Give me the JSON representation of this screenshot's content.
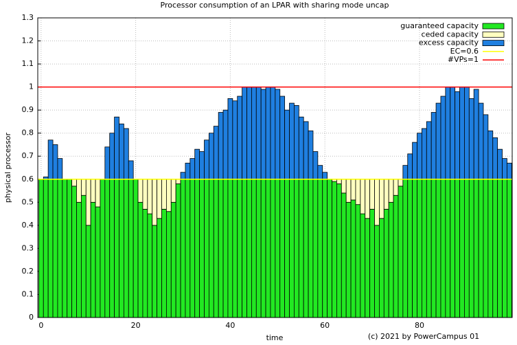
{
  "chart_data": {
    "type": "stacked-bar",
    "title": "Processor consumption of an LPAR with sharing mode uncap",
    "xlabel": "time",
    "ylabel": "physical processor",
    "footer": "(c) 2021 by PowerCampus 01",
    "x": [
      0,
      1,
      2,
      3,
      4,
      5,
      6,
      7,
      8,
      9,
      10,
      11,
      12,
      13,
      14,
      15,
      16,
      17,
      18,
      19,
      20,
      21,
      22,
      23,
      24,
      25,
      26,
      27,
      28,
      29,
      30,
      31,
      32,
      33,
      34,
      35,
      36,
      37,
      38,
      39,
      40,
      41,
      42,
      43,
      44,
      45,
      46,
      47,
      48,
      49,
      50,
      51,
      52,
      53,
      54,
      55,
      56,
      57,
      58,
      59,
      60,
      61,
      62,
      63,
      64,
      65,
      66,
      67,
      68,
      69,
      70,
      71,
      72,
      73,
      74,
      75,
      76,
      77,
      78,
      79,
      80,
      81,
      82,
      83,
      84,
      85,
      86,
      87,
      88,
      89,
      90,
      91,
      92,
      93,
      94,
      95,
      96,
      97,
      98,
      99
    ],
    "series": [
      {
        "name": "guaranteed capacity",
        "color": "#22e822",
        "values": [
          0.6,
          0.6,
          0.6,
          0.6,
          0.6,
          0.6,
          0.6,
          0.57,
          0.5,
          0.53,
          0.4,
          0.5,
          0.48,
          0.6,
          0.6,
          0.6,
          0.6,
          0.6,
          0.6,
          0.6,
          0.6,
          0.5,
          0.47,
          0.45,
          0.4,
          0.43,
          0.47,
          0.46,
          0.5,
          0.58,
          0.6,
          0.6,
          0.6,
          0.6,
          0.6,
          0.6,
          0.6,
          0.6,
          0.6,
          0.6,
          0.6,
          0.6,
          0.6,
          0.6,
          0.6,
          0.6,
          0.6,
          0.6,
          0.6,
          0.6,
          0.6,
          0.6,
          0.6,
          0.6,
          0.6,
          0.6,
          0.6,
          0.6,
          0.6,
          0.6,
          0.6,
          0.6,
          0.59,
          0.58,
          0.54,
          0.5,
          0.51,
          0.49,
          0.45,
          0.43,
          0.47,
          0.4,
          0.43,
          0.47,
          0.5,
          0.53,
          0.57,
          0.6,
          0.6,
          0.6,
          0.6,
          0.6,
          0.6,
          0.6,
          0.6,
          0.6,
          0.6,
          0.6,
          0.6,
          0.6,
          0.6,
          0.6,
          0.6,
          0.6,
          0.6,
          0.6,
          0.6,
          0.6,
          0.6,
          0.6
        ]
      },
      {
        "name": "ceded capacity",
        "color": "#ffffc0",
        "values": [
          0,
          0,
          0,
          0,
          0,
          0,
          0,
          0.03,
          0.1,
          0.07,
          0.2,
          0.1,
          0.12,
          0,
          0,
          0,
          0,
          0,
          0,
          0,
          0,
          0.1,
          0.13,
          0.15,
          0.2,
          0.17,
          0.13,
          0.14,
          0.1,
          0.02,
          0,
          0,
          0,
          0,
          0,
          0,
          0,
          0,
          0,
          0,
          0,
          0,
          0,
          0,
          0,
          0,
          0,
          0,
          0,
          0,
          0,
          0,
          0,
          0,
          0,
          0,
          0,
          0,
          0,
          0,
          0,
          0,
          0.01,
          0.02,
          0.06,
          0.1,
          0.09,
          0.11,
          0.15,
          0.17,
          0.13,
          0.2,
          0.17,
          0.13,
          0.1,
          0.07,
          0.03,
          0,
          0,
          0,
          0,
          0,
          0,
          0,
          0,
          0,
          0,
          0,
          0,
          0,
          0,
          0,
          0,
          0,
          0,
          0,
          0,
          0,
          0,
          0
        ]
      },
      {
        "name": "excess capacity",
        "color": "#1f7fe0",
        "values": [
          0,
          0.01,
          0.17,
          0.15,
          0.09,
          0,
          0,
          0,
          0,
          0,
          0,
          0,
          0,
          0,
          0.14,
          0.2,
          0.27,
          0.24,
          0.22,
          0.08,
          0,
          0,
          0,
          0,
          0,
          0,
          0,
          0,
          0,
          0,
          0.03,
          0.07,
          0.09,
          0.13,
          0.12,
          0.17,
          0.2,
          0.23,
          0.29,
          0.3,
          0.35,
          0.34,
          0.36,
          0.4,
          0.4,
          0.4,
          0.4,
          0.39,
          0.4,
          0.4,
          0.39,
          0.36,
          0.3,
          0.33,
          0.32,
          0.27,
          0.25,
          0.21,
          0.12,
          0.06,
          0.03,
          0,
          0,
          0,
          0,
          0,
          0,
          0,
          0,
          0,
          0,
          0,
          0,
          0,
          0,
          0,
          0,
          0.06,
          0.11,
          0.16,
          0.2,
          0.22,
          0.25,
          0.29,
          0.33,
          0.36,
          0.4,
          0.4,
          0.38,
          0.4,
          0.4,
          0.35,
          0.39,
          0.33,
          0.28,
          0.21,
          0.18,
          0.13,
          0.09,
          0.07
        ]
      }
    ],
    "hlines": [
      {
        "name": "EC=0.6",
        "value": 0.6,
        "color": "#ffff00"
      },
      {
        "name": "#VPs=1",
        "value": 1,
        "color": "#ff0000"
      }
    ],
    "xlim": [
      -0.7,
      99.6
    ],
    "xticks": [
      0,
      20,
      40,
      60,
      80
    ],
    "ylim": [
      0,
      1.3
    ],
    "yticks": [
      0,
      0.1,
      0.2,
      0.3,
      0.4,
      0.5,
      0.6,
      0.7,
      0.8,
      0.9,
      1,
      1.1,
      1.2,
      1.3
    ],
    "grid": true,
    "legend": "top-right"
  }
}
